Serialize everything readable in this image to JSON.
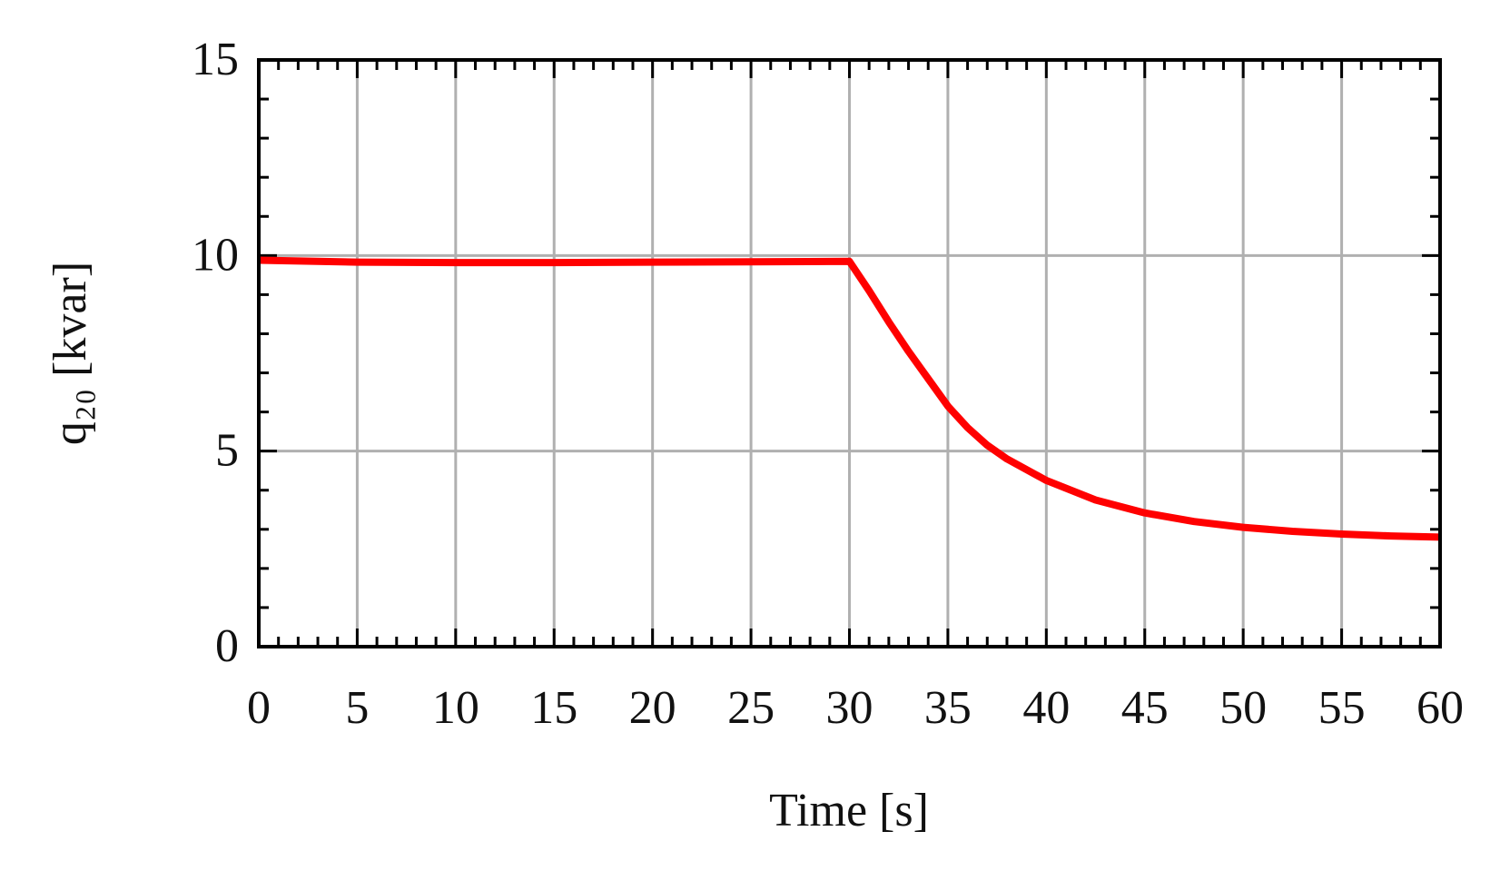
{
  "chart_data": {
    "type": "line",
    "xlabel": "Time [s]",
    "ylabel": "q₂₀ [kvar]",
    "x": [
      0,
      5,
      10,
      15,
      20,
      25,
      30,
      31,
      32,
      33,
      34,
      35,
      36,
      37,
      38,
      40,
      42.5,
      45,
      47.5,
      50,
      52.5,
      55,
      57.5,
      60
    ],
    "series": [
      {
        "name": "q20",
        "color": "#ff0000",
        "values": [
          9.88,
          9.83,
          9.82,
          9.82,
          9.83,
          9.84,
          9.85,
          9.1,
          8.3,
          7.55,
          6.85,
          6.15,
          5.6,
          5.15,
          4.8,
          4.25,
          3.75,
          3.42,
          3.2,
          3.05,
          2.95,
          2.88,
          2.83,
          2.8
        ]
      }
    ],
    "xlim": [
      0,
      60
    ],
    "xticks": [
      0,
      5,
      10,
      15,
      20,
      25,
      30,
      35,
      40,
      45,
      50,
      55,
      60
    ],
    "ylim": [
      0,
      15
    ],
    "yticks": [
      0,
      5,
      10,
      15
    ],
    "grid": true
  }
}
